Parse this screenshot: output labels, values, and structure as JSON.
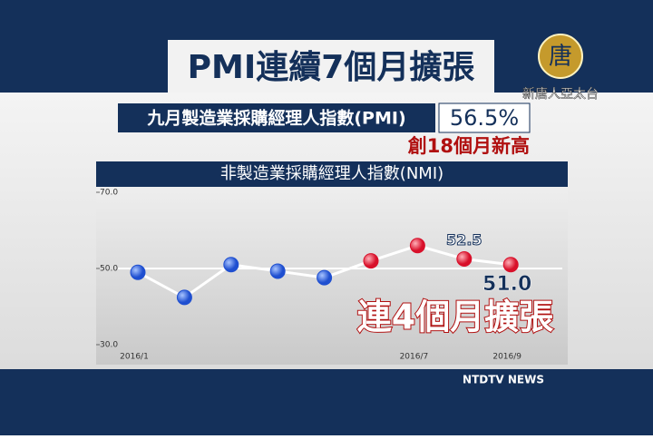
{
  "header": {
    "title": "PMI連續7個月擴張",
    "logo_char": "唐",
    "logo_text": "新唐人亞太台"
  },
  "pmi": {
    "label": "九月製造業採購經理人指數(PMI)",
    "value": "56.5%",
    "note": "創18個月新高"
  },
  "footer": "NTDTV NEWS",
  "chart_data": {
    "type": "line",
    "title": "非製造業採購經理人指數(NMI)",
    "categories": [
      "2016/1",
      null,
      null,
      null,
      null,
      null,
      "2016/7",
      null,
      "2016/9"
    ],
    "values": [
      49.0,
      42.4,
      51.0,
      49.3,
      47.6,
      52.0,
      56.0,
      52.5,
      51.0
    ],
    "value_labels": [
      null,
      null,
      null,
      null,
      null,
      null,
      null,
      "52.5",
      "51.0"
    ],
    "point_colors": [
      "#1f4fd0",
      "#1f4fd0",
      "#1f4fd0",
      "#1f4fd0",
      "#1f4fd0",
      "#d8102a",
      "#d8102a",
      "#d8102a",
      "#d8102a"
    ],
    "color": "#ffffff",
    "ylim": [
      30,
      70
    ],
    "yticks": [
      {
        "value": 30,
        "label": "30.0"
      },
      {
        "value": 50,
        "label": "50.0"
      },
      {
        "value": 70,
        "label": "70.0"
      }
    ],
    "reference_line": 50,
    "annotation": "連4個月擴張"
  }
}
